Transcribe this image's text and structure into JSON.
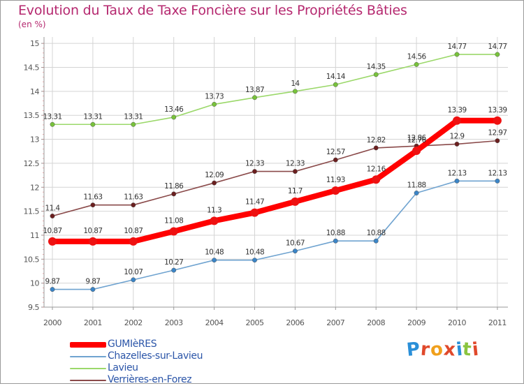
{
  "header": {
    "title": "Evolution du Taux de Taxe Foncière sur les Propriétés Bâties",
    "subtitle": "(en %)"
  },
  "logo": {
    "text": "Proxiti",
    "letter_colors": [
      "#2a8fd8",
      "#e0492b",
      "#f0a01c",
      "#e0492b",
      "#2a8fd8",
      "#8ac43f",
      "#e0492b"
    ]
  },
  "chart_data": {
    "type": "line",
    "x": [
      "2000",
      "2001",
      "2002",
      "2003",
      "2004",
      "2005",
      "2006",
      "2007",
      "2008",
      "2009",
      "2010",
      "2011"
    ],
    "ylim": [
      9.5,
      15
    ],
    "yticks": [
      "9.5",
      "10",
      "10.5",
      "11",
      "11.5",
      "12",
      "12.5",
      "13",
      "13.5",
      "14",
      "14.5",
      "15"
    ],
    "grid": true,
    "legend_position": "bottom-left",
    "series": [
      {
        "name": "GUMIèRES",
        "color": "#ff0000",
        "point_color": "#ee1111",
        "values": [
          10.87,
          10.87,
          10.87,
          11.08,
          11.3,
          11.47,
          11.7,
          11.93,
          12.16,
          12.76,
          13.39,
          13.39
        ],
        "labels": [
          "10.87",
          "10.87",
          "10.87",
          "11.08",
          "11.3",
          "11.47",
          "11.7",
          "11.93",
          "12.16",
          "12.76",
          "13.39",
          "13.39"
        ],
        "emphasis": true
      },
      {
        "name": "Chazelles-sur-Lavieu",
        "color": "#6fa3d0",
        "point_color": "#3b85c7",
        "values": [
          9.87,
          9.87,
          10.07,
          10.27,
          10.48,
          10.48,
          10.67,
          10.88,
          10.88,
          11.88,
          12.13,
          12.13
        ],
        "labels": [
          "9.87",
          "9.87",
          "10.07",
          "10.27",
          "10.48",
          "10.48",
          "10.67",
          "10.88",
          "10.88",
          "11.88",
          "12.13",
          "12.13"
        ]
      },
      {
        "name": "Lavieu",
        "color": "#9bd86a",
        "point_color": "#78c23b",
        "values": [
          13.31,
          13.31,
          13.31,
          13.46,
          13.73,
          13.87,
          14,
          14.14,
          14.35,
          14.56,
          14.77,
          14.77
        ],
        "labels": [
          "13.31",
          "13.31",
          "13.31",
          "13.46",
          "13.73",
          "13.87",
          "14",
          "14.14",
          "14.35",
          "14.56",
          "14.77",
          "14.77"
        ]
      },
      {
        "name": "Verrières-en-Forez",
        "color": "#8a4a4a",
        "point_color": "#6b1f1f",
        "values": [
          11.4,
          11.63,
          11.63,
          11.86,
          12.09,
          12.33,
          12.33,
          12.57,
          12.82,
          12.86,
          12.9,
          12.97
        ],
        "labels": [
          "11.4",
          "11.63",
          "11.63",
          "11.86",
          "12.09",
          "12.33",
          "12.33",
          "12.57",
          "12.82",
          "12.86",
          "12.9",
          "12.97"
        ]
      }
    ]
  }
}
